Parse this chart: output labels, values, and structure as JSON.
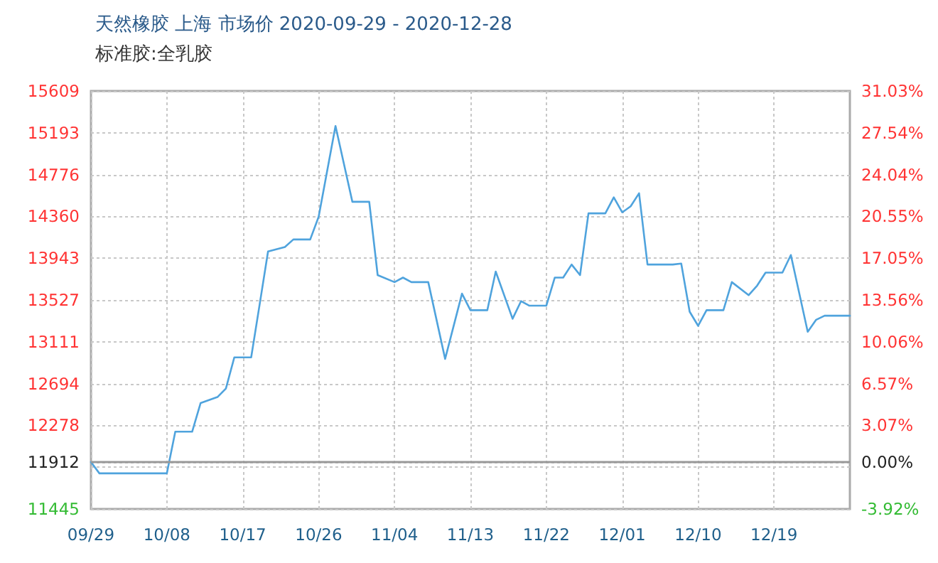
{
  "chart_data": {
    "type": "line",
    "title": "天然橡胶 上海 市场价 2020-09-29 - 2020-12-28",
    "subtitle": "标准胶:全乳胶",
    "x": [
      "2020-09-29",
      "2020-09-30",
      "2020-10-08",
      "2020-10-09",
      "2020-10-11",
      "2020-10-12",
      "2020-10-14",
      "2020-10-15",
      "2020-10-16",
      "2020-10-18",
      "2020-10-19",
      "2020-10-20",
      "2020-10-22",
      "2020-10-23",
      "2020-10-25",
      "2020-10-26",
      "2020-10-28",
      "2020-10-30",
      "2020-11-01",
      "2020-11-02",
      "2020-11-04",
      "2020-11-05",
      "2020-11-06",
      "2020-11-08",
      "2020-11-10",
      "2020-11-12",
      "2020-11-13",
      "2020-11-15",
      "2020-11-16",
      "2020-11-18",
      "2020-11-19",
      "2020-11-20",
      "2020-11-22",
      "2020-11-23",
      "2020-11-24",
      "2020-11-25",
      "2020-11-26",
      "2020-11-27",
      "2020-11-29",
      "2020-11-30",
      "2020-12-01",
      "2020-12-02",
      "2020-12-03",
      "2020-12-04",
      "2020-12-07",
      "2020-12-08",
      "2020-12-09",
      "2020-12-10",
      "2020-12-11",
      "2020-12-13",
      "2020-12-14",
      "2020-12-16",
      "2020-12-17",
      "2020-12-18",
      "2020-12-20",
      "2020-12-21",
      "2020-12-23",
      "2020-12-24",
      "2020-12-25",
      "2020-12-28"
    ],
    "series": [
      {
        "color": "#4fa3dd",
        "values": [
          11912,
          11800,
          11800,
          12215,
          12215,
          12500,
          12560,
          12645,
          12955,
          12955,
          13480,
          14010,
          14055,
          14130,
          14130,
          14355,
          15260,
          14505,
          14505,
          13775,
          13705,
          13750,
          13705,
          13705,
          12940,
          13590,
          13425,
          13425,
          13810,
          13340,
          13515,
          13470,
          13470,
          13750,
          13750,
          13880,
          13775,
          14390,
          14390,
          14550,
          14400,
          14460,
          14590,
          13880,
          13880,
          13890,
          13410,
          13270,
          13425,
          13425,
          13705,
          13575,
          13670,
          13800,
          13800,
          13975,
          13210,
          13330,
          13370,
          13370
        ]
      }
    ],
    "xlim": [
      "2020-09-29",
      "2020-12-28"
    ],
    "xticks": [
      {
        "value": "2020-09-29",
        "label": "09/29"
      },
      {
        "value": "2020-10-08",
        "label": "10/08"
      },
      {
        "value": "2020-10-17",
        "label": "10/17"
      },
      {
        "value": "2020-10-26",
        "label": "10/26"
      },
      {
        "value": "2020-11-04",
        "label": "11/04"
      },
      {
        "value": "2020-11-13",
        "label": "11/13"
      },
      {
        "value": "2020-11-22",
        "label": "11/22"
      },
      {
        "value": "2020-12-01",
        "label": "12/01"
      },
      {
        "value": "2020-12-10",
        "label": "12/10"
      },
      {
        "value": "2020-12-19",
        "label": "12/19"
      }
    ],
    "ylim": [
      11445,
      15609
    ],
    "yticks": [
      11445,
      {
        "value": 11861.4,
        "label": null
      },
      11912,
      12278,
      12694,
      13111,
      13527,
      13943,
      14360,
      14776,
      15193,
      15609
    ],
    "y2lim": [
      -3.92,
      31.03
    ],
    "y2ticks": [
      {
        "value": -3.92,
        "label": "-3.92%"
      },
      {
        "value": 0,
        "label": "0.00%"
      },
      {
        "value": 3.07,
        "label": "3.07%"
      },
      {
        "value": 6.57,
        "label": "6.57%"
      },
      {
        "value": 10.06,
        "label": "10.06%"
      },
      {
        "value": 13.56,
        "label": "13.56%"
      },
      {
        "value": 17.05,
        "label": "17.05%"
      },
      {
        "value": 20.55,
        "label": "20.55%"
      },
      {
        "value": 24.04,
        "label": "24.04%"
      },
      {
        "value": 27.54,
        "label": "27.54%"
      },
      {
        "value": 31.03,
        "label": "31.03%"
      }
    ],
    "ref_lines": [
      {
        "axis": "y",
        "value": 11912,
        "color": "#999999"
      }
    ],
    "grid": true,
    "marker": "none",
    "line_style": "solid"
  }
}
